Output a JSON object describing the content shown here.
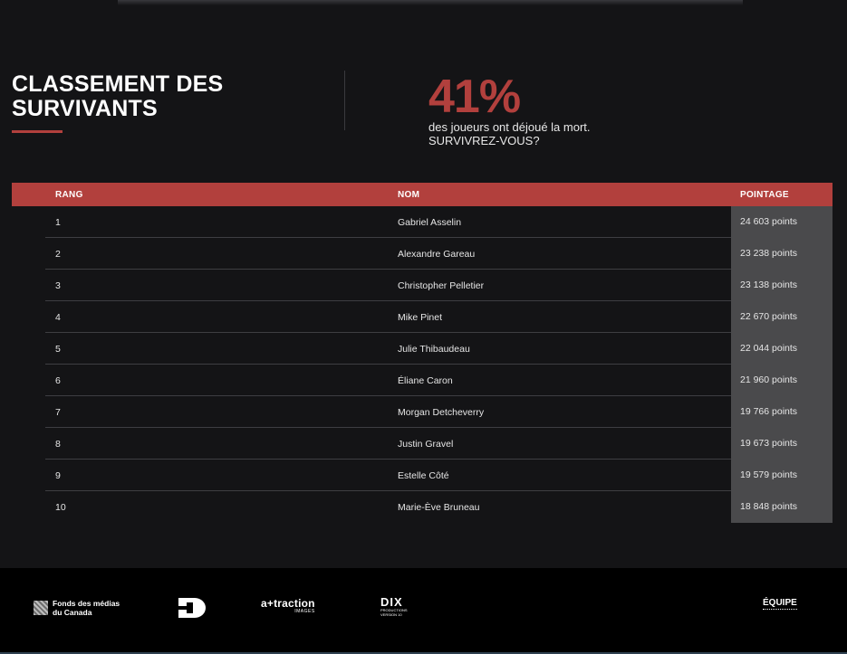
{
  "header": {
    "title": "CLASSEMENT DES\nSURVIVANTS",
    "stat_percent": "41%",
    "stat_line1": "des joueurs ont déjoué la mort.",
    "stat_line2": "SURVIVREZ-VOUS?"
  },
  "colors": {
    "accent": "#b2403d",
    "background": "#141416",
    "score_cell": "#4a4a4c",
    "footer": "#000000"
  },
  "table": {
    "headers": {
      "rank": "RANG",
      "name": "NOM",
      "score": "POINTAGE"
    },
    "rows": [
      {
        "rank": "1",
        "name": "Gabriel Asselin",
        "score": "24 603 points"
      },
      {
        "rank": "2",
        "name": "Alexandre Gareau",
        "score": "23 238 points"
      },
      {
        "rank": "3",
        "name": "Christopher Pelletier",
        "score": "23 138 points"
      },
      {
        "rank": "4",
        "name": "Mike Pinet",
        "score": "22 670 points"
      },
      {
        "rank": "5",
        "name": "Julie Thibaudeau",
        "score": "22 044 points"
      },
      {
        "rank": "6",
        "name": "Éliane Caron",
        "score": "21 960 points"
      },
      {
        "rank": "7",
        "name": "Morgan Detcheverry",
        "score": "19 766 points"
      },
      {
        "rank": "8",
        "name": "Justin Gravel",
        "score": "19 673 points"
      },
      {
        "rank": "9",
        "name": "Estelle Côté",
        "score": "19 579 points"
      },
      {
        "rank": "10",
        "name": "Marie-Ève Bruneau",
        "score": "18 848 points"
      }
    ]
  },
  "footer": {
    "fmc_logo_text": "Fonds des médias\ndu Canada",
    "attraction_logo_text": "a+traction",
    "attraction_logo_sub": "IMAGES",
    "dix_logo_text": "DIX",
    "dix_logo_sub": "PRODUCTIONS\nVERSION 10",
    "equipe_link": "ÉQUIPE"
  }
}
